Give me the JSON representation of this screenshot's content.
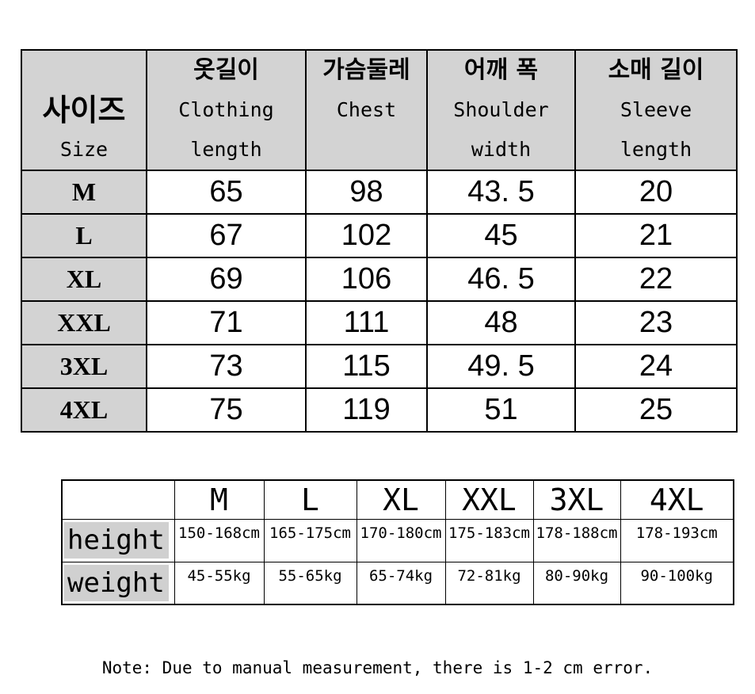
{
  "colors": {
    "header_bg": "#d3d3d3",
    "highlight_bg": "#d0d0d0",
    "border": "#000000",
    "text": "#000000"
  },
  "size_table": {
    "corner_header": {
      "ko": "사이즈",
      "en": "Size"
    },
    "columns": [
      {
        "ko": "옷길이",
        "en": "Clothing",
        "en2": "length"
      },
      {
        "ko": "가슴둘레",
        "en": "Chest",
        "en2": ""
      },
      {
        "ko": "어깨 폭",
        "en": "Shoulder",
        "en2": "width"
      },
      {
        "ko": "소매 길이",
        "en": "Sleeve",
        "en2": "length"
      }
    ],
    "rows": [
      {
        "size": "M",
        "values": [
          "65",
          "98",
          "43. 5",
          "20"
        ]
      },
      {
        "size": "L",
        "values": [
          "67",
          "102",
          "45",
          "21"
        ]
      },
      {
        "size": "XL",
        "values": [
          "69",
          "106",
          "46. 5",
          "22"
        ]
      },
      {
        "size": "XXL",
        "values": [
          "71",
          "111",
          "48",
          "23"
        ]
      },
      {
        "size": "3XL",
        "values": [
          "73",
          "115",
          "49. 5",
          "24"
        ]
      },
      {
        "size": "4XL",
        "values": [
          "75",
          "119",
          "51",
          "25"
        ]
      }
    ]
  },
  "fit_table": {
    "corner": "",
    "sizes": [
      "M",
      "L",
      "XL",
      "XXL",
      "3XL",
      "4XL"
    ],
    "rows": [
      {
        "label": "height",
        "values": [
          "150-168cm",
          "165-175cm",
          "170-180cm",
          "175-183cm",
          "178-188cm",
          "178-193cm"
        ]
      },
      {
        "label": "weight",
        "values": [
          "45-55kg",
          "55-65kg",
          "65-74kg",
          "72-81kg",
          "80-90kg",
          "90-100kg"
        ]
      }
    ]
  },
  "note": "Note: Due to manual measurement, there is 1-2 cm error."
}
